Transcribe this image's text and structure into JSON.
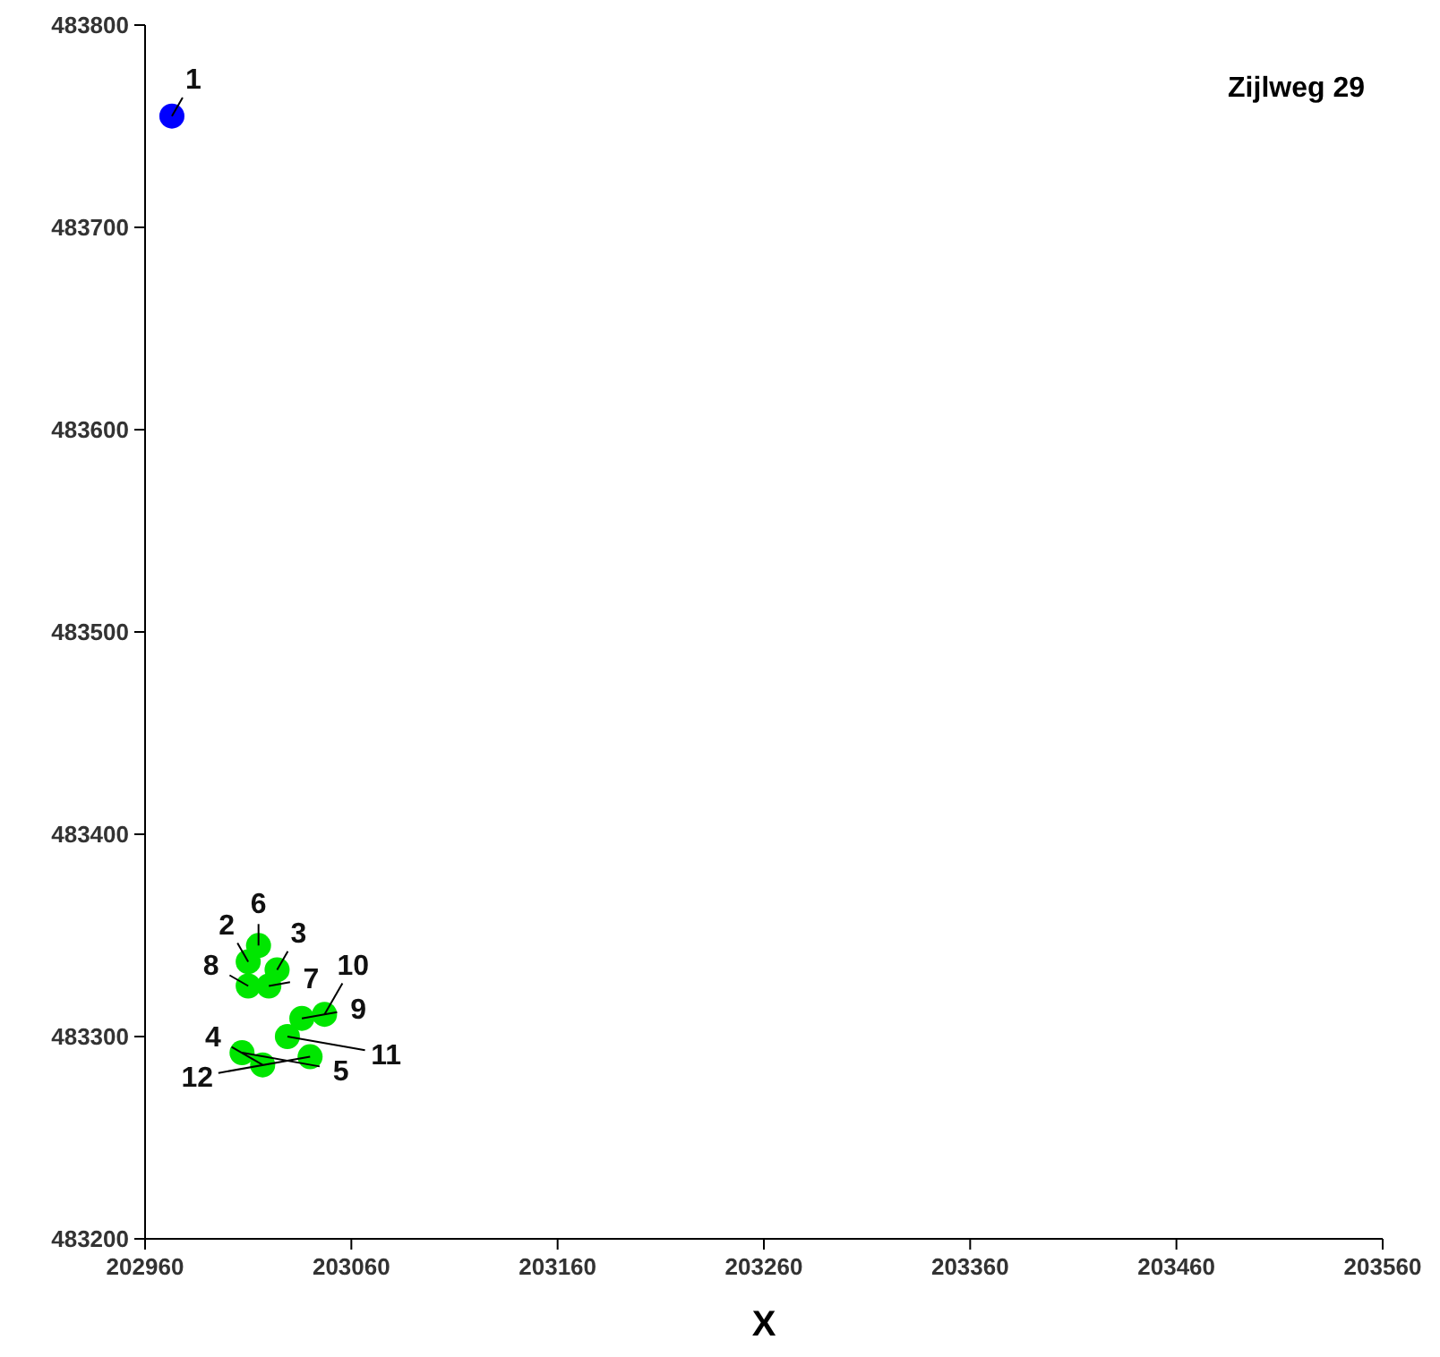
{
  "chart_data": {
    "type": "scatter",
    "title": "Zijlweg 29",
    "xlabel": "X",
    "xlim": [
      202960,
      203560
    ],
    "xticks": [
      202960,
      203060,
      203160,
      203260,
      203360,
      203460,
      203560
    ],
    "ylim": [
      483200,
      483800
    ],
    "yticks": [
      483200,
      483300,
      483400,
      483500,
      483600,
      483700,
      483800
    ],
    "grid": false,
    "marker": "circle",
    "series": [
      {
        "color": "#0000ff",
        "x": [
          202973
        ],
        "values": [
          483755
        ]
      },
      {
        "color": "#00e600",
        "x": [
          203010,
          203024,
          203017,
          203007,
          203015,
          203020,
          203010,
          203036,
          203047,
          203029,
          203040
        ],
        "values": [
          483337,
          483333,
          483286,
          483292,
          483345,
          483325,
          483325,
          483309,
          483311,
          483300,
          483290
        ]
      }
    ],
    "annotations": [
      {
        "text": "1",
        "x": 202973,
        "y": 483755
      },
      {
        "text": "2",
        "x": 203010,
        "y": 483337
      },
      {
        "text": "3",
        "x": 203024,
        "y": 483333
      },
      {
        "text": "4",
        "x": 203017,
        "y": 483286
      },
      {
        "text": "5",
        "x": 203007,
        "y": 483292
      },
      {
        "text": "6",
        "x": 203015,
        "y": 483345
      },
      {
        "text": "7",
        "x": 203020,
        "y": 483325
      },
      {
        "text": "8",
        "x": 203010,
        "y": 483325
      },
      {
        "text": "9",
        "x": 203036,
        "y": 483309
      },
      {
        "text": "10",
        "x": 203047,
        "y": 483311
      },
      {
        "text": "11",
        "x": 203029,
        "y": 483300
      },
      {
        "text": "12",
        "x": 203040,
        "y": 483290
      }
    ]
  }
}
